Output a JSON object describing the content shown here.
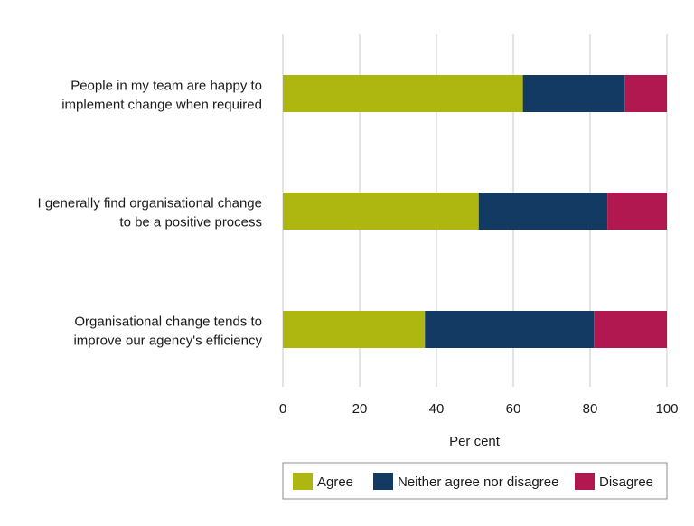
{
  "chart_data": {
    "type": "bar",
    "orientation": "horizontal",
    "stacked": true,
    "categories": [
      [
        "People in my team are happy to",
        "implement change when required"
      ],
      [
        "I generally find organisational change",
        "to be a positive process"
      ],
      [
        "Organisational change tends to",
        "improve our agency's efficiency"
      ]
    ],
    "series": [
      {
        "name": "Agree",
        "color": "#aeb70f",
        "values": [
          62.5,
          51,
          37
        ]
      },
      {
        "name": "Neither agree nor disagree",
        "color": "#133a63",
        "values": [
          26.5,
          33.5,
          44
        ]
      },
      {
        "name": "Disagree",
        "color": "#b11850",
        "values": [
          11,
          15.5,
          19
        ]
      }
    ],
    "xlim": [
      0,
      100
    ],
    "xticks": [
      "0",
      "20",
      "40",
      "60",
      "80",
      "100"
    ],
    "xtick_values": [
      0,
      20,
      40,
      60,
      80,
      100
    ],
    "xlabel": "Per cent",
    "ylabel": "",
    "title": "",
    "grid": true,
    "legend_position": "bottom"
  }
}
